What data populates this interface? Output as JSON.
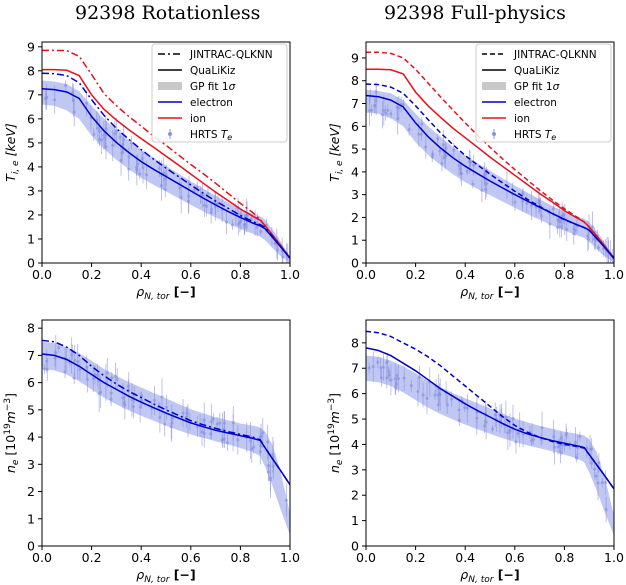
{
  "titles": {
    "left": "92398 Rotationless",
    "right": "92398 Full-physics"
  },
  "colors": {
    "electron": "#0000cc",
    "ion": "#e8101a",
    "band": "#aab4ee",
    "hrts": "#8a93e0",
    "black": "#000000"
  },
  "chart_data": [
    {
      "id": "top-left",
      "type": "line",
      "xlabel": "ρ_{N,tor} [−]",
      "ylabel": "T_{i,e} [keV]",
      "xlim": [
        0.0,
        1.0
      ],
      "ylim": [
        0,
        9.2
      ],
      "xticks": [
        "0.0",
        "0.2",
        "0.4",
        "0.6",
        "0.8",
        "1.0"
      ],
      "yticks": [
        "0",
        "1",
        "2",
        "3",
        "4",
        "5",
        "6",
        "7",
        "8",
        "9"
      ],
      "legend": {
        "position": "top-right",
        "entries": [
          "JINTRAC-QLKNN",
          "QuaLiKiz",
          "GP fit 1σ",
          "electron",
          "ion",
          "HRTS T_e"
        ]
      },
      "x": [
        0.0,
        0.05,
        0.1,
        0.15,
        0.2,
        0.25,
        0.3,
        0.35,
        0.4,
        0.45,
        0.5,
        0.55,
        0.6,
        0.65,
        0.7,
        0.75,
        0.8,
        0.85,
        0.88,
        0.9,
        0.95,
        1.0
      ],
      "series": [
        {
          "name": "JINTRAC-QLKNN ion",
          "color": "ion",
          "dash": "dashdot",
          "values": [
            8.85,
            8.85,
            8.84,
            8.6,
            7.85,
            7.05,
            6.55,
            6.1,
            5.7,
            5.28,
            4.9,
            4.5,
            4.1,
            3.72,
            3.32,
            2.9,
            2.48,
            2.1,
            1.8,
            1.55,
            0.9,
            0.2
          ]
        },
        {
          "name": "QuaLiKiz ion",
          "color": "ion",
          "dash": "solid",
          "values": [
            8.05,
            8.05,
            8.02,
            7.8,
            7.0,
            6.4,
            5.95,
            5.55,
            5.18,
            4.82,
            4.45,
            4.08,
            3.7,
            3.32,
            2.95,
            2.6,
            2.25,
            1.95,
            1.78,
            1.55,
            0.9,
            0.2
          ]
        },
        {
          "name": "JINTRAC-QLKNN electron",
          "color": "electron",
          "dash": "dashdot",
          "values": [
            7.9,
            7.88,
            7.8,
            7.5,
            6.8,
            6.15,
            5.6,
            5.15,
            4.72,
            4.32,
            3.95,
            3.6,
            3.25,
            2.9,
            2.58,
            2.28,
            1.98,
            1.72,
            1.6,
            1.48,
            0.85,
            0.2
          ]
        },
        {
          "name": "QuaLiKiz electron",
          "color": "electron",
          "dash": "solid",
          "values": [
            7.25,
            7.22,
            7.12,
            6.85,
            6.1,
            5.5,
            5.02,
            4.6,
            4.22,
            3.9,
            3.6,
            3.3,
            3.0,
            2.7,
            2.42,
            2.15,
            1.9,
            1.66,
            1.55,
            1.42,
            0.82,
            0.2
          ]
        }
      ],
      "band": {
        "lower": [
          6.6,
          6.55,
          6.35,
          6.0,
          5.3,
          4.75,
          4.3,
          3.9,
          3.55,
          3.25,
          2.98,
          2.7,
          2.42,
          2.15,
          1.9,
          1.65,
          1.42,
          1.22,
          1.1,
          0.95,
          0.4,
          0.0
        ],
        "upper": [
          7.6,
          7.55,
          7.45,
          7.15,
          6.55,
          6.0,
          5.55,
          5.1,
          4.72,
          4.38,
          4.05,
          3.72,
          3.4,
          3.1,
          2.8,
          2.52,
          2.25,
          2.05,
          1.95,
          1.8,
          1.1,
          0.25
        ]
      }
    },
    {
      "id": "top-right",
      "type": "line",
      "xlabel": "ρ_{N,tor} [−]",
      "ylabel": "T_{i,e} [keV]",
      "xlim": [
        0.0,
        1.0
      ],
      "ylim": [
        0,
        9.7
      ],
      "xticks": [
        "0.0",
        "0.2",
        "0.4",
        "0.6",
        "0.8",
        "1.0"
      ],
      "yticks": [
        "0",
        "1",
        "2",
        "3",
        "4",
        "5",
        "6",
        "7",
        "8",
        "9"
      ],
      "legend": {
        "position": "top-right",
        "entries": [
          "JINTRAC-QLKNN",
          "QuaLiKiz",
          "GP fit 1σ",
          "electron",
          "ion",
          "HRTS T_e"
        ]
      },
      "x": [
        0.0,
        0.05,
        0.1,
        0.15,
        0.2,
        0.25,
        0.3,
        0.35,
        0.4,
        0.45,
        0.5,
        0.55,
        0.6,
        0.65,
        0.7,
        0.75,
        0.8,
        0.85,
        0.88,
        0.9,
        0.95,
        1.0
      ],
      "series": [
        {
          "name": "JINTRAC-QLKNN ion",
          "color": "ion",
          "dash": "dashed",
          "values": [
            9.25,
            9.25,
            9.2,
            9.0,
            8.5,
            7.9,
            7.3,
            6.72,
            6.15,
            5.6,
            5.08,
            4.58,
            4.1,
            3.65,
            3.2,
            2.78,
            2.38,
            2.02,
            1.8,
            1.58,
            0.92,
            0.2
          ]
        },
        {
          "name": "QuaLiKiz ion",
          "color": "ion",
          "dash": "solid",
          "values": [
            8.5,
            8.5,
            8.48,
            8.3,
            7.5,
            6.9,
            6.4,
            5.92,
            5.5,
            5.08,
            4.65,
            4.25,
            3.85,
            3.45,
            3.05,
            2.68,
            2.3,
            1.98,
            1.8,
            1.58,
            0.92,
            0.2
          ]
        },
        {
          "name": "JINTRAC-QLKNN electron",
          "color": "electron",
          "dash": "dashed",
          "values": [
            7.85,
            7.83,
            7.72,
            7.45,
            6.9,
            6.3,
            5.72,
            5.2,
            4.72,
            4.3,
            3.9,
            3.52,
            3.15,
            2.8,
            2.48,
            2.18,
            1.9,
            1.68,
            1.55,
            1.45,
            0.85,
            0.2
          ]
        },
        {
          "name": "QuaLiKiz electron",
          "color": "electron",
          "dash": "solid",
          "values": [
            7.35,
            7.3,
            7.15,
            6.85,
            6.15,
            5.55,
            5.05,
            4.62,
            4.25,
            3.92,
            3.6,
            3.3,
            3.0,
            2.72,
            2.45,
            2.18,
            1.92,
            1.68,
            1.56,
            1.44,
            0.84,
            0.2
          ]
        }
      ],
      "band": {
        "lower": [
          6.6,
          6.55,
          6.35,
          6.0,
          5.3,
          4.75,
          4.3,
          3.9,
          3.55,
          3.25,
          2.98,
          2.7,
          2.42,
          2.15,
          1.9,
          1.65,
          1.42,
          1.22,
          1.1,
          0.95,
          0.4,
          0.0
        ],
        "upper": [
          7.6,
          7.55,
          7.45,
          7.15,
          6.55,
          6.0,
          5.55,
          5.1,
          4.72,
          4.38,
          4.05,
          3.72,
          3.4,
          3.1,
          2.8,
          2.52,
          2.25,
          2.05,
          1.95,
          1.8,
          1.1,
          0.25
        ]
      }
    },
    {
      "id": "bottom-left",
      "type": "line",
      "xlabel": "ρ_{N,tor} [−]",
      "ylabel": "n_e [10^{19} m^{-3}]",
      "xlim": [
        0.0,
        1.0
      ],
      "ylim": [
        0,
        8.3
      ],
      "xticks": [
        "0.0",
        "0.2",
        "0.4",
        "0.6",
        "0.8",
        "1.0"
      ],
      "yticks": [
        "0",
        "1",
        "2",
        "3",
        "4",
        "5",
        "6",
        "7",
        "8"
      ],
      "x": [
        0.0,
        0.05,
        0.1,
        0.15,
        0.2,
        0.25,
        0.3,
        0.35,
        0.4,
        0.45,
        0.5,
        0.55,
        0.6,
        0.65,
        0.7,
        0.75,
        0.8,
        0.85,
        0.88,
        0.9,
        0.93,
        0.96,
        1.0
      ],
      "series": [
        {
          "name": "JINTRAC-QLKNN electron",
          "color": "electron",
          "dash": "dashdot",
          "values": [
            7.55,
            7.5,
            7.3,
            7.0,
            6.6,
            6.25,
            5.95,
            5.68,
            5.45,
            5.22,
            5.0,
            4.8,
            4.6,
            4.45,
            4.32,
            4.2,
            4.1,
            4.0,
            3.9,
            3.6,
            3.2,
            2.8,
            2.25
          ]
        },
        {
          "name": "QuaLiKiz electron",
          "color": "electron",
          "dash": "solid",
          "values": [
            7.05,
            7.0,
            6.85,
            6.6,
            6.3,
            6.0,
            5.75,
            5.5,
            5.28,
            5.08,
            4.88,
            4.7,
            4.52,
            4.38,
            4.25,
            4.15,
            4.05,
            3.95,
            3.88,
            3.6,
            3.2,
            2.8,
            2.25
          ]
        }
      ],
      "band": {
        "lower": [
          6.5,
          6.45,
          6.3,
          6.05,
          5.75,
          5.45,
          5.2,
          4.98,
          4.78,
          4.6,
          4.42,
          4.25,
          4.1,
          3.97,
          3.85,
          3.73,
          3.6,
          3.45,
          3.3,
          2.9,
          2.2,
          1.4,
          0.4
        ],
        "upper": [
          7.5,
          7.45,
          7.3,
          7.08,
          6.8,
          6.5,
          6.25,
          6.02,
          5.82,
          5.62,
          5.42,
          5.22,
          5.02,
          4.87,
          4.73,
          4.62,
          4.5,
          4.42,
          4.35,
          4.2,
          3.7,
          2.8,
          1.2
        ]
      }
    },
    {
      "id": "bottom-right",
      "type": "line",
      "xlabel": "ρ_{N,tor} [−]",
      "ylabel": "n_e [10^{19} m^{-3}]",
      "xlim": [
        0.0,
        1.0
      ],
      "ylim": [
        0,
        8.9
      ],
      "xticks": [
        "0.0",
        "0.2",
        "0.4",
        "0.6",
        "0.8",
        "1.0"
      ],
      "yticks": [
        "0",
        "1",
        "2",
        "3",
        "4",
        "5",
        "6",
        "7",
        "8"
      ],
      "x": [
        0.0,
        0.05,
        0.1,
        0.15,
        0.2,
        0.25,
        0.3,
        0.35,
        0.4,
        0.45,
        0.5,
        0.55,
        0.6,
        0.65,
        0.7,
        0.75,
        0.8,
        0.85,
        0.88,
        0.9,
        0.93,
        0.96,
        1.0
      ],
      "series": [
        {
          "name": "JINTRAC-QLKNN electron",
          "color": "electron",
          "dash": "dashed",
          "values": [
            8.45,
            8.4,
            8.25,
            8.0,
            7.75,
            7.45,
            7.1,
            6.7,
            6.3,
            5.9,
            5.5,
            5.1,
            4.75,
            4.48,
            4.28,
            4.12,
            4.0,
            3.92,
            3.85,
            3.6,
            3.2,
            2.8,
            2.25
          ]
        },
        {
          "name": "QuaLiKiz electron",
          "color": "electron",
          "dash": "solid",
          "values": [
            7.8,
            7.7,
            7.5,
            7.2,
            6.9,
            6.55,
            6.2,
            5.9,
            5.6,
            5.33,
            5.08,
            4.83,
            4.6,
            4.42,
            4.28,
            4.15,
            4.05,
            3.95,
            3.88,
            3.6,
            3.2,
            2.8,
            2.25
          ]
        }
      ],
      "band": {
        "lower": [
          6.5,
          6.45,
          6.3,
          6.05,
          5.75,
          5.45,
          5.2,
          4.98,
          4.78,
          4.6,
          4.42,
          4.25,
          4.1,
          3.97,
          3.85,
          3.73,
          3.6,
          3.45,
          3.3,
          2.9,
          2.2,
          1.4,
          0.4
        ],
        "upper": [
          7.5,
          7.45,
          7.3,
          7.08,
          6.8,
          6.5,
          6.25,
          6.02,
          5.82,
          5.62,
          5.42,
          5.22,
          5.02,
          4.87,
          4.73,
          4.62,
          4.5,
          4.42,
          4.35,
          4.2,
          3.7,
          2.8,
          1.2
        ]
      }
    }
  ]
}
